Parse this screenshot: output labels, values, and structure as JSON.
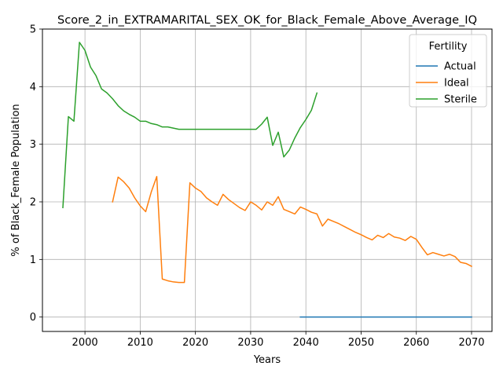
{
  "chart_data": {
    "type": "line",
    "title": "Score_2_in_EXTRAMARITAL_SEX_OK_for_Black_Female_Above_Average_IQ",
    "xlabel": "Years",
    "ylabel": "% of Black_Female Population",
    "xlim": [
      1992.3,
      2073.7
    ],
    "ylim": [
      -0.25,
      5
    ],
    "x_ticks": [
      2000,
      2010,
      2020,
      2030,
      2040,
      2050,
      2060,
      2070
    ],
    "y_ticks": [
      0,
      1,
      2,
      3,
      4,
      5
    ],
    "grid": true,
    "legend": {
      "title": "Fertility",
      "placement": "upper right"
    },
    "series": [
      {
        "name": "Actual",
        "color": "#1f77b4",
        "x": [
          2039,
          2040,
          2045,
          2050,
          2055,
          2060,
          2065,
          2070
        ],
        "y": [
          0,
          0,
          0,
          0,
          0,
          0,
          0,
          0
        ]
      },
      {
        "name": "Ideal",
        "color": "#ff7f0e",
        "x": [
          2005,
          2006,
          2007,
          2008,
          2009,
          2010,
          2011,
          2012,
          2013,
          2014,
          2015,
          2016,
          2017,
          2018,
          2019,
          2020,
          2021,
          2022,
          2023,
          2024,
          2025,
          2026,
          2027,
          2028,
          2029,
          2030,
          2031,
          2032,
          2033,
          2034,
          2035,
          2036,
          2037,
          2038,
          2039,
          2040,
          2041,
          2042,
          2043,
          2044,
          2045,
          2046,
          2047,
          2048,
          2049,
          2050,
          2051,
          2052,
          2053,
          2054,
          2055,
          2056,
          2057,
          2058,
          2059,
          2060,
          2061,
          2062,
          2063,
          2064,
          2065,
          2066,
          2067,
          2068,
          2069,
          2070
        ],
        "y": [
          2.0,
          2.43,
          2.35,
          2.24,
          2.07,
          1.93,
          1.83,
          2.17,
          2.44,
          0.66,
          0.63,
          0.61,
          0.6,
          0.6,
          2.33,
          2.24,
          2.18,
          2.07,
          2.0,
          1.94,
          2.13,
          2.04,
          1.97,
          1.9,
          1.85,
          2.0,
          1.94,
          1.86,
          2.0,
          1.94,
          2.09,
          1.87,
          1.83,
          1.79,
          1.91,
          1.87,
          1.82,
          1.79,
          1.58,
          1.7,
          1.66,
          1.62,
          1.57,
          1.52,
          1.47,
          1.43,
          1.38,
          1.34,
          1.42,
          1.38,
          1.45,
          1.39,
          1.37,
          1.33,
          1.4,
          1.35,
          1.21,
          1.08,
          1.12,
          1.09,
          1.06,
          1.09,
          1.05,
          0.95,
          0.93,
          0.88
        ]
      },
      {
        "name": "Sterile",
        "color": "#2ca02c",
        "x": [
          1996,
          1997,
          1998,
          1999,
          2000,
          2001,
          2002,
          2003,
          2004,
          2005,
          2006,
          2007,
          2008,
          2009,
          2010,
          2011,
          2012,
          2013,
          2014,
          2015,
          2016,
          2017,
          2018,
          2019,
          2020,
          2021,
          2022,
          2023,
          2024,
          2025,
          2026,
          2027,
          2028,
          2029,
          2030,
          2031,
          2032,
          2033,
          2034,
          2035,
          2036,
          2037,
          2038,
          2039,
          2040,
          2041,
          2042
        ],
        "y": [
          1.9,
          3.48,
          3.4,
          4.77,
          4.63,
          4.34,
          4.19,
          3.96,
          3.89,
          3.79,
          3.67,
          3.58,
          3.52,
          3.47,
          3.4,
          3.4,
          3.36,
          3.34,
          3.3,
          3.3,
          3.28,
          3.26,
          3.26,
          3.26,
          3.26,
          3.26,
          3.26,
          3.26,
          3.26,
          3.26,
          3.26,
          3.26,
          3.26,
          3.26,
          3.26,
          3.26,
          3.35,
          3.47,
          2.98,
          3.21,
          2.78,
          2.9,
          3.11,
          3.29,
          3.43,
          3.59,
          3.89
        ]
      }
    ]
  }
}
